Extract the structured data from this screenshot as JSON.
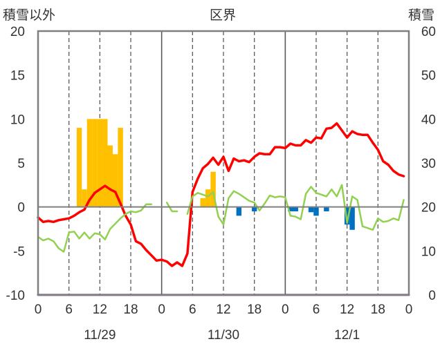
{
  "chart_data": {
    "type": "bar+line",
    "header": {
      "left_label": "積雪以外",
      "center_label": "区界",
      "right_label": "積雪"
    },
    "y_left": {
      "min": -10,
      "max": 20,
      "ticks": [
        20,
        15,
        10,
        5,
        0,
        -5,
        -10
      ],
      "labels": [
        "20",
        "15",
        "10",
        "5",
        "0",
        "-5",
        "-10"
      ]
    },
    "y_right": {
      "min": 0,
      "max": 60,
      "ticks": [
        60,
        50,
        40,
        30,
        20,
        10,
        0
      ],
      "labels": [
        "60",
        "50",
        "40",
        "30",
        "20",
        "10",
        "0"
      ]
    },
    "x": {
      "min": 0,
      "max": 72,
      "tick_hours": [
        0,
        6,
        12,
        18,
        24,
        30,
        36,
        42,
        48,
        54,
        60,
        66,
        72
      ],
      "tick_labels": [
        "0",
        "6",
        "12",
        "18",
        "0",
        "6",
        "12",
        "18",
        "0",
        "6",
        "12",
        "18",
        "0"
      ],
      "day_separators": [
        24,
        48
      ],
      "dashed_lines": [
        6,
        12,
        18,
        30,
        36,
        42,
        54,
        60,
        66
      ],
      "dates": [
        {
          "label": "11/29",
          "hour": 12
        },
        {
          "label": "11/30",
          "hour": 36
        },
        {
          "label": "12/1",
          "hour": 60
        }
      ]
    },
    "grid": "dashed-vertical",
    "series": [
      {
        "color": "#ff0000",
        "kind": "line",
        "axis": "left",
        "points": [
          [
            0,
            -1.2
          ],
          [
            1,
            -1.7
          ],
          [
            2,
            -1.6
          ],
          [
            3,
            -1.7
          ],
          [
            4,
            -1.5
          ],
          [
            5,
            -1.4
          ],
          [
            6,
            -1.3
          ],
          [
            7,
            -1.0
          ],
          [
            8,
            -0.6
          ],
          [
            9,
            -0.3
          ],
          [
            10,
            0.8
          ],
          [
            11,
            1.6
          ],
          [
            12,
            2.0
          ],
          [
            13,
            2.4
          ],
          [
            14,
            2.0
          ],
          [
            15,
            1.7
          ],
          [
            16,
            0.4
          ],
          [
            17,
            -1.0
          ],
          [
            18,
            -2.0
          ],
          [
            19,
            -3.9
          ],
          [
            20,
            -4.2
          ],
          [
            21,
            -4.9
          ],
          [
            22,
            -5.5
          ],
          [
            23,
            -6.1
          ],
          [
            24,
            -6.0
          ],
          [
            25,
            -6.2
          ],
          [
            26,
            -6.7
          ],
          [
            27,
            -6.3
          ],
          [
            28,
            -6.7
          ],
          [
            29,
            -5.3
          ],
          [
            30,
            1.7
          ],
          [
            31,
            3.2
          ],
          [
            32,
            4.4
          ],
          [
            33,
            4.9
          ],
          [
            34,
            5.6
          ],
          [
            35,
            4.8
          ],
          [
            36,
            5.7
          ],
          [
            37,
            4.1
          ],
          [
            38,
            5.5
          ],
          [
            39,
            5.2
          ],
          [
            40,
            5.3
          ],
          [
            41,
            5.1
          ],
          [
            42,
            5.7
          ],
          [
            43,
            6.1
          ],
          [
            44,
            6.0
          ],
          [
            45,
            6.0
          ],
          [
            46,
            6.8
          ],
          [
            47,
            6.8
          ],
          [
            48,
            6.7
          ],
          [
            49,
            7.2
          ],
          [
            50,
            7.0
          ],
          [
            51,
            7.0
          ],
          [
            52,
            7.6
          ],
          [
            53,
            7.3
          ],
          [
            54,
            7.9
          ],
          [
            55,
            7.8
          ],
          [
            56,
            8.9
          ],
          [
            57,
            9.0
          ],
          [
            58,
            9.5
          ],
          [
            59,
            8.7
          ],
          [
            60,
            7.9
          ],
          [
            61,
            8.6
          ],
          [
            62,
            8.3
          ],
          [
            63,
            8.2
          ],
          [
            64,
            8.2
          ],
          [
            65,
            7.3
          ],
          [
            66,
            6.5
          ],
          [
            67,
            5.2
          ],
          [
            68,
            4.8
          ],
          [
            69,
            4.1
          ],
          [
            70,
            3.7
          ],
          [
            71,
            3.5
          ]
        ]
      },
      {
        "color": "#92d050",
        "kind": "line",
        "axis": "left",
        "segments": [
          [
            [
              0,
              -3.4
            ],
            [
              1,
              -3.8
            ],
            [
              2,
              -3.6
            ],
            [
              3,
              -3.9
            ],
            [
              4,
              -4.7
            ],
            [
              5,
              -5.1
            ],
            [
              6,
              -2.9
            ],
            [
              7,
              -2.8
            ],
            [
              8,
              -3.6
            ],
            [
              9,
              -2.9
            ],
            [
              10,
              -3.6
            ],
            [
              11,
              -3.0
            ],
            [
              12,
              -3.1
            ],
            [
              13,
              -3.7
            ],
            [
              14,
              -2.5
            ],
            [
              15,
              -1.9
            ],
            [
              16,
              -1.3
            ],
            [
              17,
              -0.8
            ],
            [
              18,
              -0.5
            ],
            [
              19,
              -0.6
            ],
            [
              20,
              -0.4
            ],
            [
              21,
              0.3
            ],
            [
              22,
              0.3
            ]
          ],
          [
            [
              25,
              0.5
            ],
            [
              26,
              -0.5
            ],
            [
              27,
              -0.5
            ]
          ],
          [
            [
              29,
              -0.8
            ],
            [
              30,
              1.2
            ],
            [
              31,
              1.6
            ],
            [
              32,
              1.4
            ],
            [
              33,
              1.2
            ],
            [
              34,
              1.7
            ],
            [
              35,
              -1.1
            ],
            [
              36,
              -2.0
            ],
            [
              37,
              1.0
            ],
            [
              38,
              1.8
            ],
            [
              39,
              1.5
            ],
            [
              40,
              1.1
            ],
            [
              41,
              0.7
            ],
            [
              42,
              0.5
            ],
            [
              43,
              -0.4
            ],
            [
              44,
              0.4
            ],
            [
              45,
              1.3
            ],
            [
              46,
              1.1
            ],
            [
              47,
              1.2
            ],
            [
              48,
              1.1
            ],
            [
              49,
              -1.0
            ],
            [
              50,
              -1.1
            ],
            [
              51,
              -1.4
            ],
            [
              52,
              1.5
            ],
            [
              53,
              2.3
            ],
            [
              54,
              1.6
            ],
            [
              55,
              1.4
            ],
            [
              56,
              1.2
            ],
            [
              57,
              2.0
            ],
            [
              58,
              1.2
            ],
            [
              59,
              2.5
            ],
            [
              60,
              -1.8
            ],
            [
              61,
              1.2
            ],
            [
              62,
              0.8
            ],
            [
              63,
              -2.2
            ],
            [
              64,
              -2.4
            ],
            [
              65,
              -2.6
            ],
            [
              66,
              -1.3
            ],
            [
              67,
              -1.7
            ],
            [
              68,
              -1.6
            ],
            [
              69,
              -1.3
            ],
            [
              70,
              -1.5
            ],
            [
              71,
              0.8
            ]
          ]
        ]
      },
      {
        "color": "#ffc000",
        "kind": "bar",
        "axis": "left",
        "bars": [
          [
            8,
            9
          ],
          [
            9,
            2
          ],
          [
            10,
            10
          ],
          [
            11,
            10
          ],
          [
            12,
            10
          ],
          [
            13,
            10
          ],
          [
            14,
            7
          ],
          [
            15,
            6
          ],
          [
            16,
            9
          ],
          [
            32,
            1
          ],
          [
            33,
            2
          ],
          [
            34,
            4
          ]
        ]
      },
      {
        "color": "#0070c0",
        "kind": "bar",
        "axis": "left",
        "bars": [
          [
            39,
            -1
          ],
          [
            42,
            -0.5
          ],
          [
            49,
            -0.5
          ],
          [
            50,
            -0.5
          ],
          [
            53,
            -0.6
          ],
          [
            54,
            -1
          ],
          [
            56,
            -0.5
          ],
          [
            60,
            -2
          ],
          [
            61,
            -2.6
          ]
        ]
      },
      {
        "color": "#7030a0",
        "kind": "line",
        "axis": "right",
        "points": [
          [
            0,
            0
          ],
          [
            72,
            0
          ]
        ]
      }
    ]
  }
}
